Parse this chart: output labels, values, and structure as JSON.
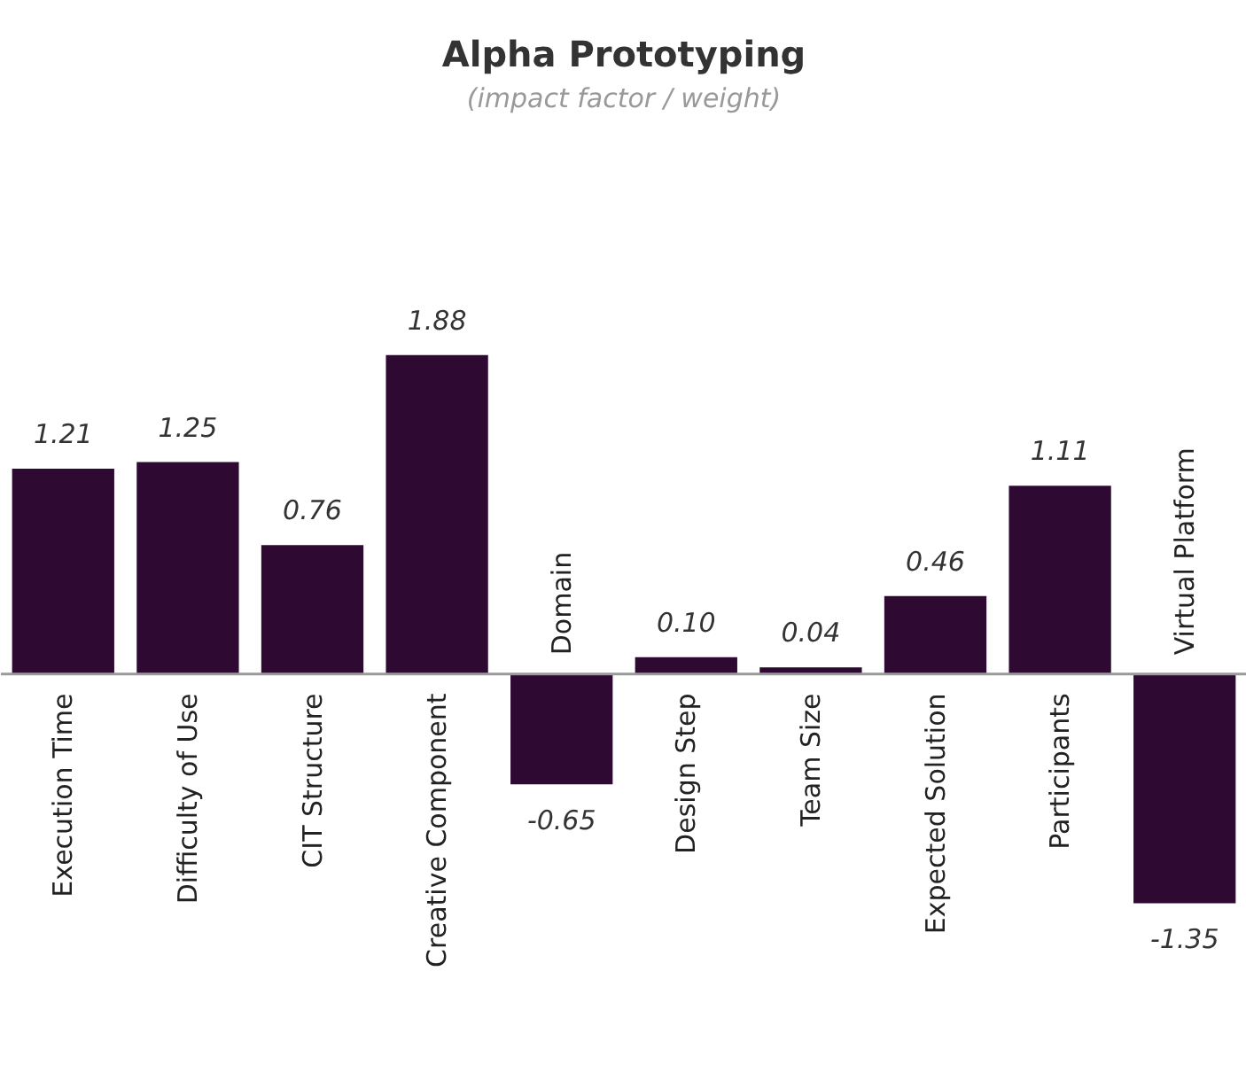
{
  "chart_data": {
    "type": "bar",
    "title": "Alpha Prototyping",
    "subtitle": "(impact factor / weight)",
    "categories": [
      "Execution Time",
      "Difficulty of Use",
      "CIT Structure",
      "Creative Component",
      "Domain",
      "Design Step",
      "Team Size",
      "Expected Solution",
      "Participants",
      "Virtual Platform"
    ],
    "values": [
      1.21,
      1.25,
      0.76,
      1.88,
      -0.65,
      0.1,
      0.04,
      0.46,
      1.11,
      -1.35
    ],
    "value_labels": [
      "1.21",
      "1.25",
      "0.76",
      "1.88",
      "-0.65",
      "0.10",
      "0.04",
      "0.46",
      "1.11",
      "-1.35"
    ],
    "color": "#2e0a33",
    "grid": false
  }
}
